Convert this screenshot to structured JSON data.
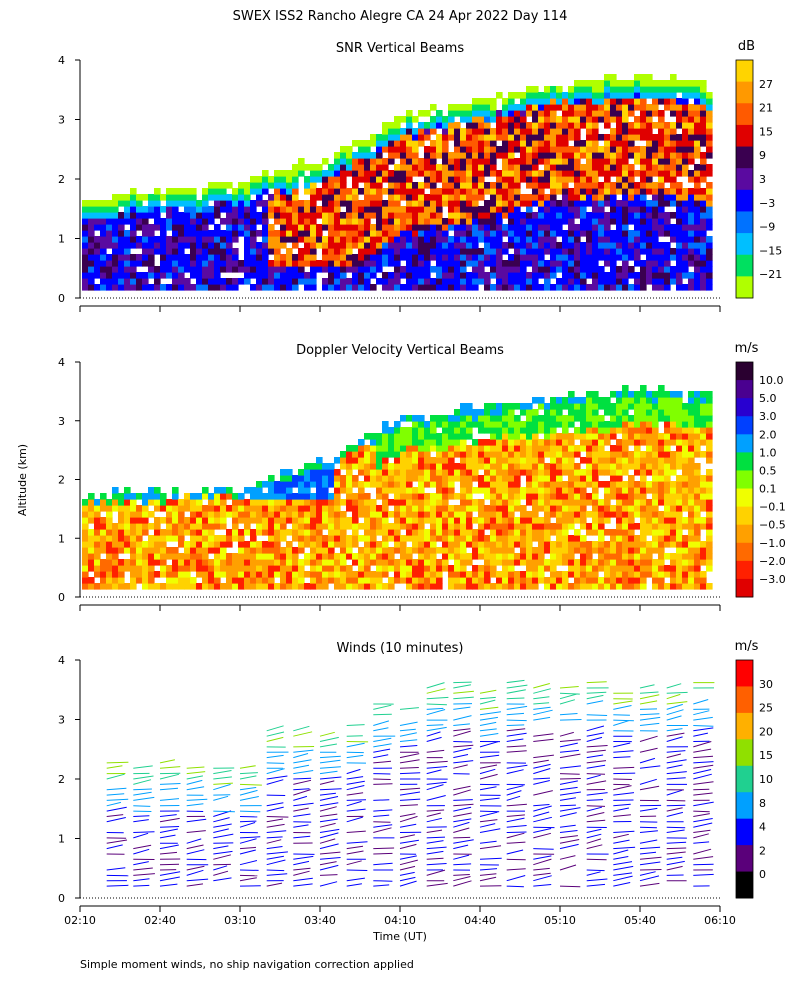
{
  "title": "SWEX ISS2 Rancho Alegre CA  24 Apr 2022 Day 114",
  "y_axis_label": "Altitude (km)",
  "footnote": "Simple moment winds, no ship navigation correction applied",
  "chart_data": [
    {
      "type": "heatmap",
      "title": "SNR Vertical Beams",
      "xlabel": "",
      "ylabel": "Altitude (km)",
      "xlim": [
        "02:10",
        "06:10"
      ],
      "ylim": [
        0,
        4
      ],
      "x_ticks": [
        "02:10",
        "02:40",
        "03:10",
        "03:40",
        "04:10",
        "04:40",
        "05:10",
        "05:40",
        "06:10"
      ],
      "y_ticks": [
        "0",
        "1",
        "2",
        "3",
        "4"
      ],
      "colorbar": {
        "unit": "dB",
        "labels": [
          "27",
          "21",
          "15",
          "9",
          "3",
          "−3",
          "−9",
          "−15",
          "−21"
        ],
        "colors": [
          "#ffd400",
          "#ff9900",
          "#ff5a00",
          "#e00000",
          "#3a0050",
          "#5a0aa0",
          "#0000ff",
          "#0072ff",
          "#00bfff",
          "#00e060",
          "#b0ff00"
        ]
      },
      "approx_top_altitude_km": {
        "02:10": 1.6,
        "03:10": 1.9,
        "03:40": 2.3,
        "04:10": 3.0,
        "04:40": 3.3,
        "05:10": 3.6,
        "05:40": 3.7,
        "06:10": 3.5
      }
    },
    {
      "type": "heatmap",
      "title": "Doppler Velocity Vertical Beams",
      "xlabel": "",
      "ylabel": "Altitude (km)",
      "xlim": [
        "02:10",
        "06:10"
      ],
      "ylim": [
        0,
        4
      ],
      "x_ticks": [
        "02:10",
        "02:40",
        "03:10",
        "03:40",
        "04:10",
        "04:40",
        "05:10",
        "05:40",
        "06:10"
      ],
      "y_ticks": [
        "0",
        "1",
        "2",
        "3",
        "4"
      ],
      "colorbar": {
        "unit": "m/s",
        "labels": [
          "10.0",
          "5.0",
          "3.0",
          "2.0",
          "1.0",
          "0.5",
          "0.1",
          "−0.1",
          "−0.5",
          "−1.0",
          "−2.0",
          "−3.0"
        ],
        "colors": [
          "#2a0030",
          "#4a0090",
          "#2800d0",
          "#0040ff",
          "#00a0ff",
          "#00e040",
          "#80ff00",
          "#f0ff00",
          "#ffd200",
          "#ffa000",
          "#ff6a00",
          "#ff2000",
          "#e00000"
        ]
      }
    },
    {
      "type": "wind-barbs",
      "title": "Winds (10 minutes)",
      "xlabel": "Time (UT)",
      "ylabel": "Altitude (km)",
      "xlim": [
        "02:10",
        "06:10"
      ],
      "ylim": [
        0,
        4
      ],
      "x_ticks": [
        "02:10",
        "02:40",
        "03:10",
        "03:40",
        "04:10",
        "04:40",
        "05:10",
        "05:40",
        "06:10"
      ],
      "y_ticks": [
        "0",
        "1",
        "2",
        "3",
        "4"
      ],
      "colorbar": {
        "unit": "m/s",
        "labels": [
          "30",
          "25",
          "20",
          "15",
          "10",
          "8",
          "4",
          "2",
          "0"
        ],
        "colors": [
          "#ff0000",
          "#ff6000",
          "#ffb000",
          "#90e000",
          "#20d090",
          "#00a0ff",
          "#0000ff",
          "#5a007a",
          "#000000"
        ]
      }
    }
  ]
}
